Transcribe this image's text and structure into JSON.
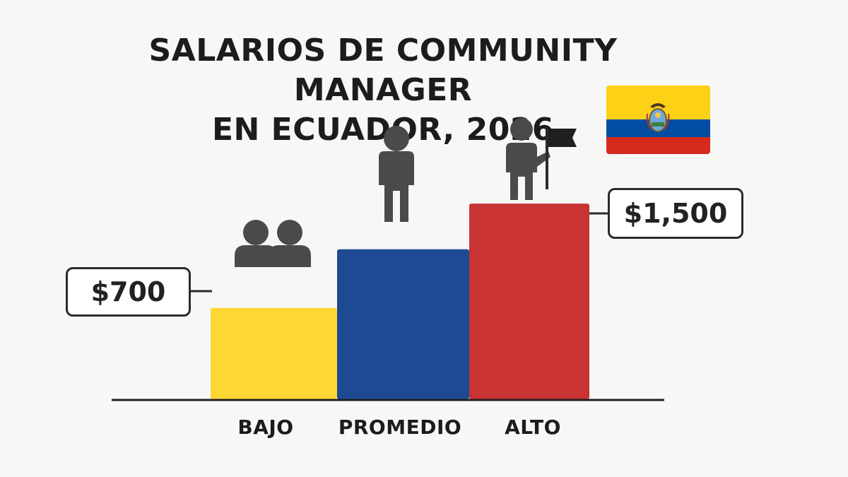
{
  "title_lines": [
    "SALARIOS DE COMMUNITY MANAGER",
    "EN ECUADOR, 2026"
  ],
  "chart_data": {
    "type": "bar",
    "title": "SALARIOS DE COMMUNITY MANAGER EN ECUADOR, 2026",
    "categories": [
      "BAJO",
      "PROMEDIO",
      "ALTO"
    ],
    "values": [
      700,
      1150,
      1500
    ],
    "data_labels": [
      "$700",
      "",
      "$1,500"
    ],
    "colors": [
      "#fdd835",
      "#1e4a94",
      "#c93333"
    ],
    "ylim": [
      0,
      2600
    ],
    "grid": false,
    "legend": "none"
  },
  "icons": {
    "bajo": "two-people-icon",
    "promedio": "person-icon",
    "alto": "person-with-flag-icon",
    "flag": "ecuador-flag-icon"
  },
  "flag_colors": [
    "#fcd116",
    "#034ea2",
    "#d52b1e"
  ]
}
